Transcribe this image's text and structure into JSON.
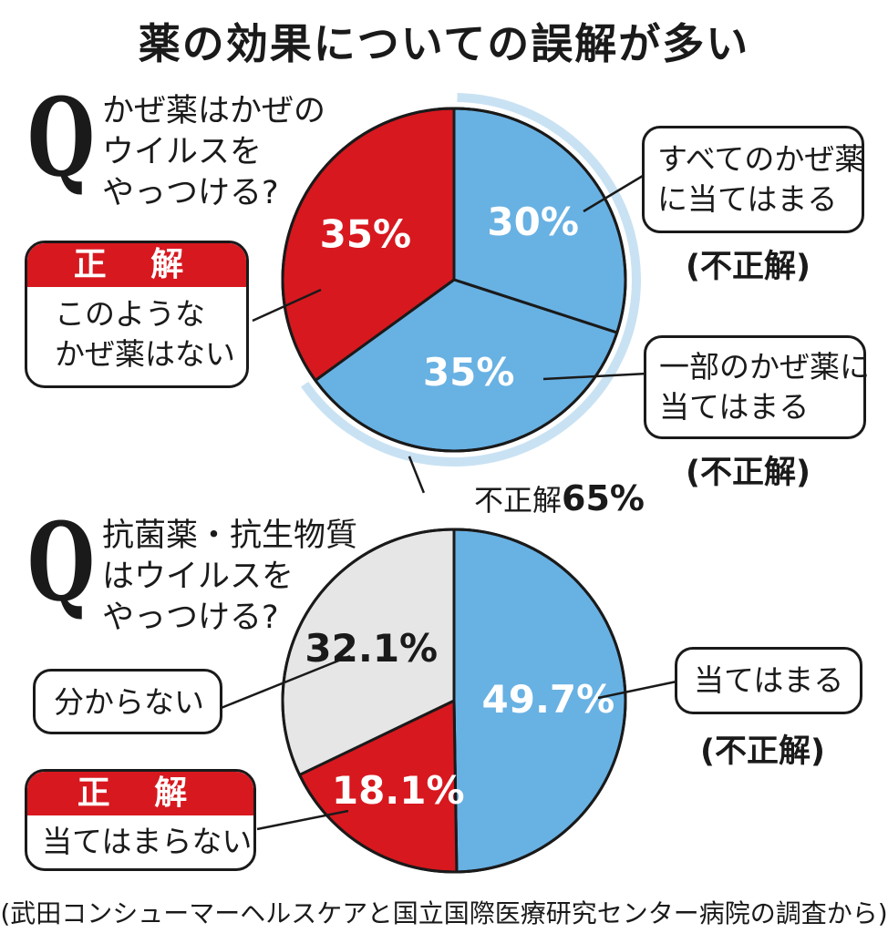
{
  "title": "薬の効果についての誤解が多い",
  "chart_data": [
    {
      "type": "pie",
      "question": "かぜ薬はかぜの\nウイルスを\nやっつける?",
      "slices": [
        {
          "label": "すべてのかぜ薬\nに当てはまる",
          "value": 30,
          "value_label": "30%",
          "verdict": "(不正解)",
          "color": "#68b1e3"
        },
        {
          "label": "一部のかぜ薬に\n当てはまる",
          "value": 35,
          "value_label": "35%",
          "verdict": "(不正解)",
          "color": "#68b1e3"
        },
        {
          "label": "このような\nかぜ薬はない",
          "value": 35,
          "value_label": "35%",
          "verdict": "正 解",
          "color": "#d7181f"
        }
      ],
      "incorrect_total_label": "不正解",
      "incorrect_total_value": "65%"
    },
    {
      "type": "pie",
      "question": "抗菌薬・抗生物質\nはウイルスを\nやっつける?",
      "slices": [
        {
          "label": "当てはまる",
          "value": 49.7,
          "value_label": "49.7%",
          "verdict": "(不正解)",
          "color": "#68b1e3"
        },
        {
          "label": "当てはまらない",
          "value": 18.1,
          "value_label": "18.1%",
          "verdict": "正 解",
          "color": "#d7181f"
        },
        {
          "label": "分からない",
          "value": 32.1,
          "value_label": "32.1%",
          "verdict": "",
          "color": "#e6e6e6"
        }
      ]
    }
  ],
  "q_mark": "Q",
  "source": "(武田コンシューマーヘルスケアと国立国際医療研究センター病院の調査から)"
}
